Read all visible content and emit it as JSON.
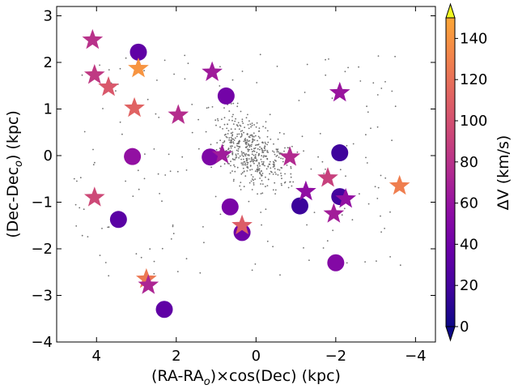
{
  "chart_data": {
    "type": "scatter",
    "xlabel_main": "(RA-RA",
    "xlabel_sub": "o",
    "xlabel_tail": ")×cos(Dec) (kpc)",
    "ylabel_main": "(Dec-Dec",
    "ylabel_sub": "o",
    "ylabel_tail": ") (kpc)",
    "xlim": [
      5.0,
      -4.5
    ],
    "ylim": [
      -4.0,
      3.2
    ],
    "xticks": [
      4,
      2,
      0,
      -2,
      -4
    ],
    "xtick_labels": [
      "4",
      "2",
      "0",
      "−2",
      "−4"
    ],
    "yticks": [
      3,
      2,
      1,
      0,
      -1,
      -2,
      -3,
      -4
    ],
    "ytick_labels": [
      "3",
      "2",
      "1",
      "0",
      "−1",
      "−2",
      "−3",
      "−4"
    ],
    "colorbar": {
      "label": "ΔV (km/s)",
      "range": [
        0,
        150
      ],
      "extend": "both",
      "ticks": [
        0,
        20,
        40,
        60,
        80,
        100,
        120,
        140
      ],
      "tick_labels": [
        "0",
        "20",
        "40",
        "60",
        "80",
        "100",
        "120",
        "140"
      ],
      "colormap": "plasma"
    },
    "series": [
      {
        "name": "circles",
        "marker": "circle",
        "points": [
          {
            "x": 2.95,
            "y": 2.22,
            "dv": 33
          },
          {
            "x": 0.75,
            "y": 1.28,
            "dv": 42
          },
          {
            "x": 3.1,
            "y": -0.02,
            "dv": 58
          },
          {
            "x": 1.15,
            "y": -0.03,
            "dv": 47
          },
          {
            "x": -2.1,
            "y": 0.06,
            "dv": 18
          },
          {
            "x": 3.45,
            "y": -1.37,
            "dv": 30
          },
          {
            "x": 0.65,
            "y": -1.1,
            "dv": 45
          },
          {
            "x": 0.35,
            "y": -1.65,
            "dv": 40
          },
          {
            "x": -1.1,
            "y": -1.08,
            "dv": 17
          },
          {
            "x": -2.1,
            "y": -0.88,
            "dv": 20
          },
          {
            "x": -2.0,
            "y": -2.3,
            "dv": 50
          },
          {
            "x": 2.3,
            "y": -3.3,
            "dv": 33
          }
        ]
      },
      {
        "name": "stars",
        "marker": "star",
        "points": [
          {
            "x": 4.1,
            "y": 2.48,
            "dv": 80
          },
          {
            "x": 4.05,
            "y": 1.73,
            "dv": 85
          },
          {
            "x": 3.7,
            "y": 1.47,
            "dv": 105
          },
          {
            "x": 2.95,
            "y": 1.87,
            "dv": 140
          },
          {
            "x": 3.05,
            "y": 1.02,
            "dv": 112
          },
          {
            "x": 1.1,
            "y": 1.79,
            "dv": 65
          },
          {
            "x": 1.95,
            "y": 0.87,
            "dv": 77
          },
          {
            "x": 0.85,
            "y": 0.02,
            "dv": 65
          },
          {
            "x": -0.85,
            "y": -0.03,
            "dv": 75
          },
          {
            "x": -1.25,
            "y": -0.77,
            "dv": 57
          },
          {
            "x": -1.8,
            "y": -0.48,
            "dv": 90
          },
          {
            "x": -2.1,
            "y": 1.35,
            "dv": 62
          },
          {
            "x": -2.25,
            "y": -0.93,
            "dv": 58
          },
          {
            "x": -1.95,
            "y": -1.25,
            "dv": 67
          },
          {
            "x": -3.6,
            "y": -0.65,
            "dv": 128
          },
          {
            "x": 4.05,
            "y": -0.9,
            "dv": 95
          },
          {
            "x": 0.35,
            "y": -1.5,
            "dv": 108
          },
          {
            "x": 2.75,
            "y": -2.65,
            "dv": 125
          },
          {
            "x": 2.7,
            "y": -2.78,
            "dv": 72
          }
        ]
      }
    ]
  }
}
